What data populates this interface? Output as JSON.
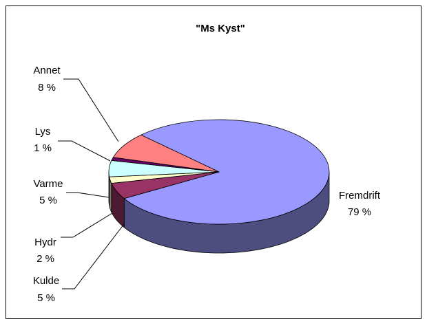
{
  "chart_data": {
    "type": "pie",
    "title": "\"Ms Kyst\"",
    "categories": [
      "Fremdrift",
      "Kulde",
      "Hydr",
      "Varme",
      "Lys",
      "Annet"
    ],
    "values": [
      79,
      5,
      2,
      5,
      1,
      8
    ],
    "value_labels": [
      "79 %",
      "5 %",
      "2 %",
      "5 %",
      "1 %",
      "8 %"
    ],
    "colors": [
      "#9999ff",
      "#993366",
      "#ffffcc",
      "#ccffff",
      "#660066",
      "#ff8080"
    ]
  }
}
